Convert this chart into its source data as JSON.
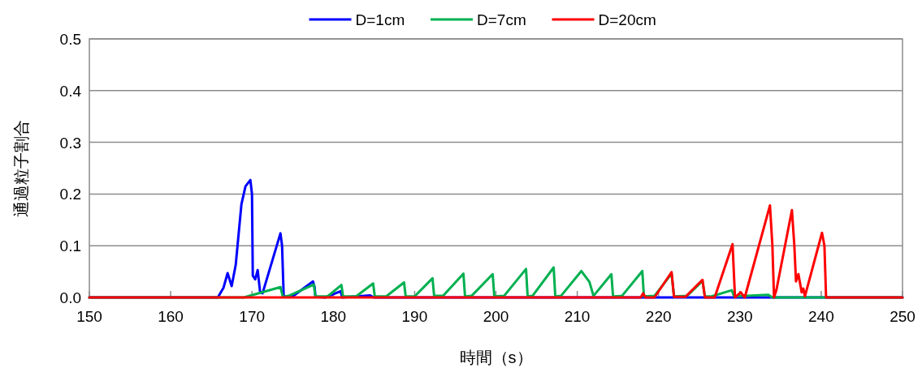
{
  "chart_data": {
    "type": "line",
    "xlabel": "時間（s）",
    "ylabel": "通過粒子割合",
    "xlim": [
      150,
      250
    ],
    "xticks": [
      150,
      160,
      170,
      180,
      190,
      200,
      210,
      220,
      230,
      240,
      250
    ],
    "ylim": [
      0,
      0.5
    ],
    "yticks": [
      {
        "value": 0,
        "label": "0.0"
      },
      0.1,
      0.2,
      0.3,
      0.4,
      0.5
    ],
    "grid": "y",
    "legend": "top",
    "marker": "none",
    "line_style": "solid",
    "series": [
      {
        "name": "D=1cm",
        "color": "#0000ff",
        "x": [
          150,
          165.8,
          166.5,
          167.0,
          167.5,
          168.0,
          168.7,
          169.2,
          169.8,
          170.0,
          170.1,
          170.4,
          170.7,
          171.0,
          171.3,
          173.5,
          173.7,
          173.9,
          175,
          177.5,
          177.7,
          177.8,
          179,
          180.9,
          181.1,
          184.5,
          185,
          250
        ],
        "values": [
          0,
          0,
          0.019,
          0.047,
          0.022,
          0.063,
          0.18,
          0.215,
          0.227,
          0.2,
          0.042,
          0.035,
          0.053,
          0.01,
          0.008,
          0.124,
          0.1,
          0.002,
          0.002,
          0.031,
          0.02,
          0.001,
          0,
          0.012,
          0,
          0.004,
          0,
          0
        ]
      },
      {
        "name": "D=7cm",
        "color": "#00b050",
        "x": [
          150,
          169,
          173.5,
          173.8,
          174.5,
          177.6,
          177.8,
          179.3,
          181.0,
          181.2,
          182.8,
          184.9,
          185.1,
          186.5,
          188.7,
          188.9,
          190.0,
          192.2,
          192.4,
          193.5,
          196.0,
          196.2,
          197.0,
          199.6,
          199.8,
          201.0,
          203.7,
          203.9,
          204.5,
          207.1,
          207.3,
          208.0,
          210.5,
          211.5,
          212.0,
          214.2,
          214.4,
          215.5,
          218.0,
          218.2,
          219.5,
          221.6,
          221.9,
          223.5,
          225.4,
          225.7,
          226.5,
          229.0,
          229.3,
          233.5,
          234,
          250
        ],
        "values": [
          0,
          0,
          0.02,
          0.001,
          0.003,
          0.025,
          0.002,
          0.002,
          0.024,
          0.002,
          0.002,
          0.027,
          0.002,
          0.002,
          0.029,
          0.002,
          0.002,
          0.037,
          0.003,
          0.003,
          0.046,
          0.002,
          0.003,
          0.045,
          0.002,
          0.003,
          0.055,
          0.002,
          0.003,
          0.058,
          0.002,
          0.003,
          0.051,
          0.03,
          0.003,
          0.045,
          0.002,
          0.003,
          0.051,
          0.002,
          0.003,
          0.046,
          0.002,
          0.003,
          0.032,
          0.002,
          0.002,
          0.014,
          0.002,
          0.005,
          0,
          0
        ]
      },
      {
        "name": "D=20cm",
        "color": "#ff0000",
        "x": [
          150,
          217.8,
          218.1,
          218.4,
          219.5,
          221.6,
          221.9,
          223.3,
          225.4,
          225.7,
          226.9,
          229.1,
          229.4,
          230.1,
          230.6,
          233.7,
          234.0,
          234.2,
          234.5,
          236.4,
          236.7,
          236.9,
          237.2,
          237.6,
          237.8,
          238.0,
          240.1,
          240.4,
          240.6,
          250
        ],
        "values": [
          0,
          0,
          0.008,
          0,
          0,
          0.049,
          0.001,
          0.001,
          0.034,
          0,
          0,
          0.103,
          0,
          0.01,
          0,
          0.178,
          0.1,
          0,
          0.015,
          0.169,
          0.1,
          0.031,
          0.045,
          0.01,
          0.017,
          0.002,
          0.125,
          0.1,
          0,
          0
        ]
      }
    ]
  }
}
